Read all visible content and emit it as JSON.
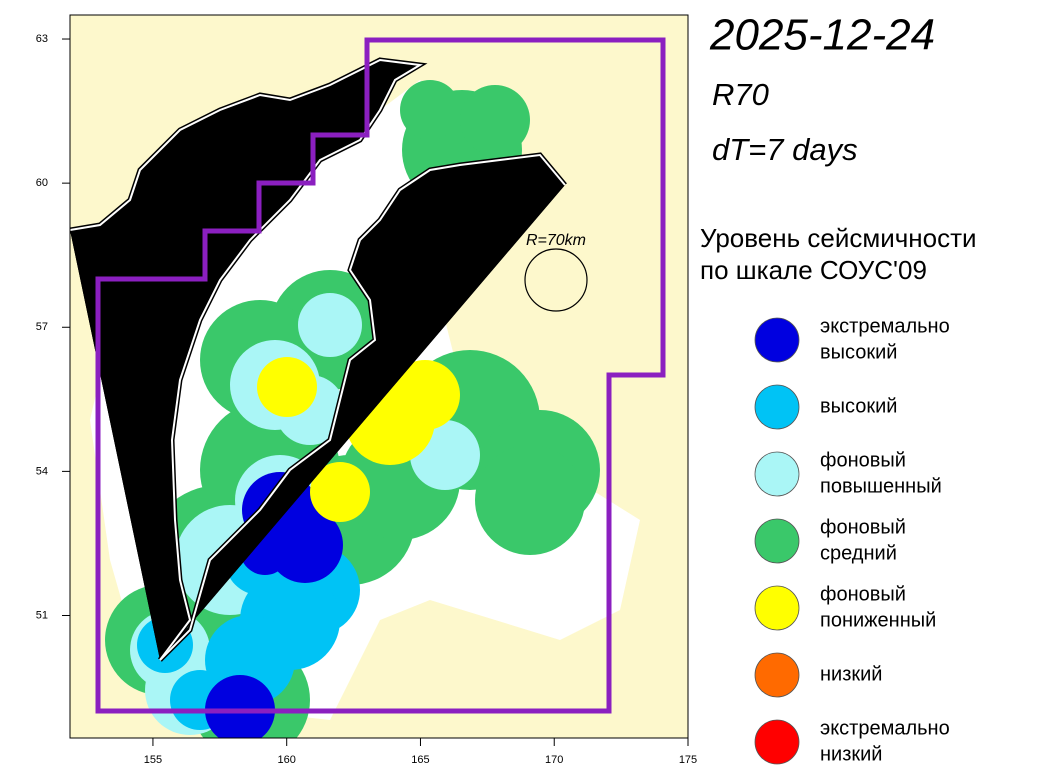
{
  "header": {
    "date": "2025-12-24",
    "radius": "R70",
    "period": "dT=7 days"
  },
  "map": {
    "xlim": [
      151.9,
      175
    ],
    "ylim": [
      48.45,
      63.5
    ],
    "xticks": [
      155,
      160,
      165,
      170,
      175
    ],
    "yticks": [
      51,
      54,
      57,
      60,
      63
    ],
    "radius_label": "R=70km"
  },
  "legend": {
    "title": [
      "Уровень сейсмичности",
      "по шкале СОУС'09"
    ],
    "items": [
      {
        "label": [
          "экстремально",
          "высокий"
        ],
        "color": "#0000e0"
      },
      {
        "label": [
          "высокий"
        ],
        "color": "#00c3f5"
      },
      {
        "label": [
          "фоновый",
          "повышенный"
        ],
        "color": "#aaf6f6"
      },
      {
        "label": [
          "фоновый",
          "средний"
        ],
        "color": "#3ac86a"
      },
      {
        "label": [
          "фоновый",
          "пониженный"
        ],
        "color": "#ffff00"
      },
      {
        "label": [
          "низкий"
        ],
        "color": "#ff6a00"
      },
      {
        "label": [
          "экстремально",
          "низкий"
        ],
        "color": "#ff0000"
      }
    ]
  }
}
